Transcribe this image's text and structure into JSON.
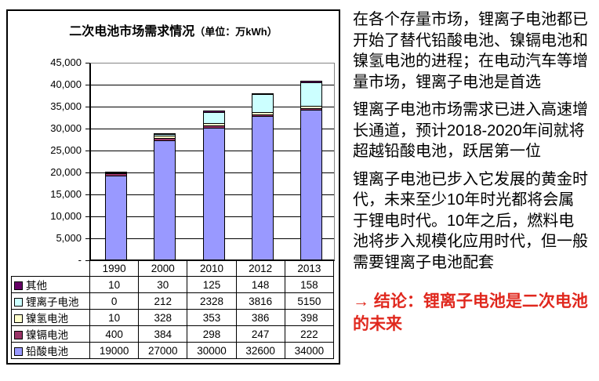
{
  "chart_data": {
    "type": "bar",
    "stacked": true,
    "title_main": "二次电池市场需求情况",
    "title_unit": "（单位：万kWh）",
    "categories": [
      "1990",
      "2000",
      "2010",
      "2012",
      "2013"
    ],
    "series": [
      {
        "name": "铅酸电池",
        "color": "#9999ff",
        "values": [
          19000,
          27000,
          30000,
          32600,
          34000
        ]
      },
      {
        "name": "镍镉电池",
        "color": "#993366",
        "values": [
          400,
          384,
          298,
          247,
          222
        ]
      },
      {
        "name": "镍氢电池",
        "color": "#ffffcc",
        "values": [
          10,
          328,
          353,
          386,
          398
        ]
      },
      {
        "name": "锂离子电池",
        "color": "#ccffff",
        "values": [
          0,
          212,
          2328,
          3816,
          5150
        ]
      },
      {
        "name": "其他",
        "color": "#660066",
        "values": [
          10,
          30,
          125,
          148,
          158
        ]
      }
    ],
    "y_ticks": [
      "45,000",
      "40,000",
      "35,000",
      "30,000",
      "25,000",
      "20,000",
      "15,000",
      "10,000",
      "5,000",
      "-"
    ],
    "ylim": [
      0,
      45000
    ],
    "grid": true,
    "legend_position": "data-table-left"
  },
  "commentary": {
    "paragraphs": [
      "在各个存量市场，锂离子电池都已开始了替代铅酸电池、镍镉电池和镍氢电池的进程；在电动汽车等增量市场，锂离子电池是首选",
      "锂离子电池市场需求已进入高速增长通道，预计2018-2020年间就将超越铅酸电池，跃居第一位",
      "锂离子电池已步入它发展的黄金时代，未来至少10年时光都将会属于锂电时代。10年之后，燃料电池将步入规模化应用时代，但一般需要锂离子电池配套"
    ],
    "conclusion": "→ 结论：锂离子电池是二次电池的未来",
    "conclusion_color": "#e0281e"
  },
  "colors": {
    "bar_outline": "#000000",
    "plot_border": "#848484",
    "gridline": "#000000"
  }
}
